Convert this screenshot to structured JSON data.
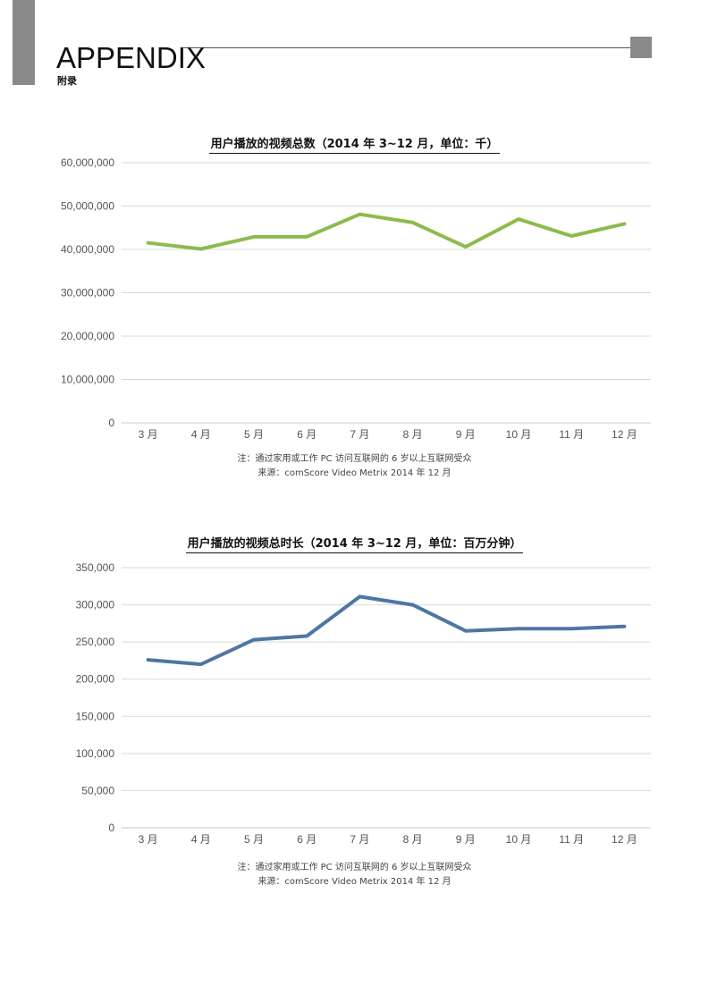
{
  "header": {
    "title": "APPENDIX",
    "subtitle": "附录"
  },
  "chart_data": [
    {
      "type": "line",
      "title": "用户播放的视频总数（2014 年 3~12 月，单位：千）",
      "categories": [
        "3 月",
        "4 月",
        "5 月",
        "6 月",
        "7 月",
        "8 月",
        "9 月",
        "10 月",
        "11 月",
        "12 月"
      ],
      "values": [
        41500000,
        40100000,
        42900000,
        42900000,
        48100000,
        46200000,
        40600000,
        47000000,
        43100000,
        45900000
      ],
      "ylim": [
        0,
        60000000
      ],
      "yticks": [
        0,
        10000000,
        20000000,
        30000000,
        40000000,
        50000000,
        60000000
      ],
      "ytick_labels": [
        "0",
        "10,000,000",
        "20,000,000",
        "30,000,000",
        "40,000,000",
        "50,000,000",
        "60,000,000"
      ],
      "color": "#8dbb4c",
      "grid": true,
      "note": "注：通过家用或工作 PC 访问互联网的 6 岁以上互联网受众",
      "source": "来源：comScore Video Metrix 2014 年 12 月"
    },
    {
      "type": "line",
      "title": "用户播放的视频总时长（2014 年 3~12 月，单位：百万分钟）",
      "categories": [
        "3 月",
        "4 月",
        "5 月",
        "6 月",
        "7 月",
        "8 月",
        "9 月",
        "10 月",
        "11 月",
        "12 月"
      ],
      "values": [
        226000,
        220000,
        253000,
        258000,
        311000,
        300000,
        265000,
        268000,
        268000,
        271000
      ],
      "ylim": [
        0,
        350000
      ],
      "yticks": [
        0,
        50000,
        100000,
        150000,
        200000,
        250000,
        300000,
        350000
      ],
      "ytick_labels": [
        "0",
        "50,000",
        "100,000",
        "150,000",
        "200,000",
        "250,000",
        "300,000",
        "350,000"
      ],
      "color": "#4e76a4",
      "grid": true,
      "note": "注：通过家用或工作 PC 访问互联网的 6 岁以上互联网受众",
      "source": "来源：comScore Video Metrix 2014 年 12 月"
    }
  ]
}
